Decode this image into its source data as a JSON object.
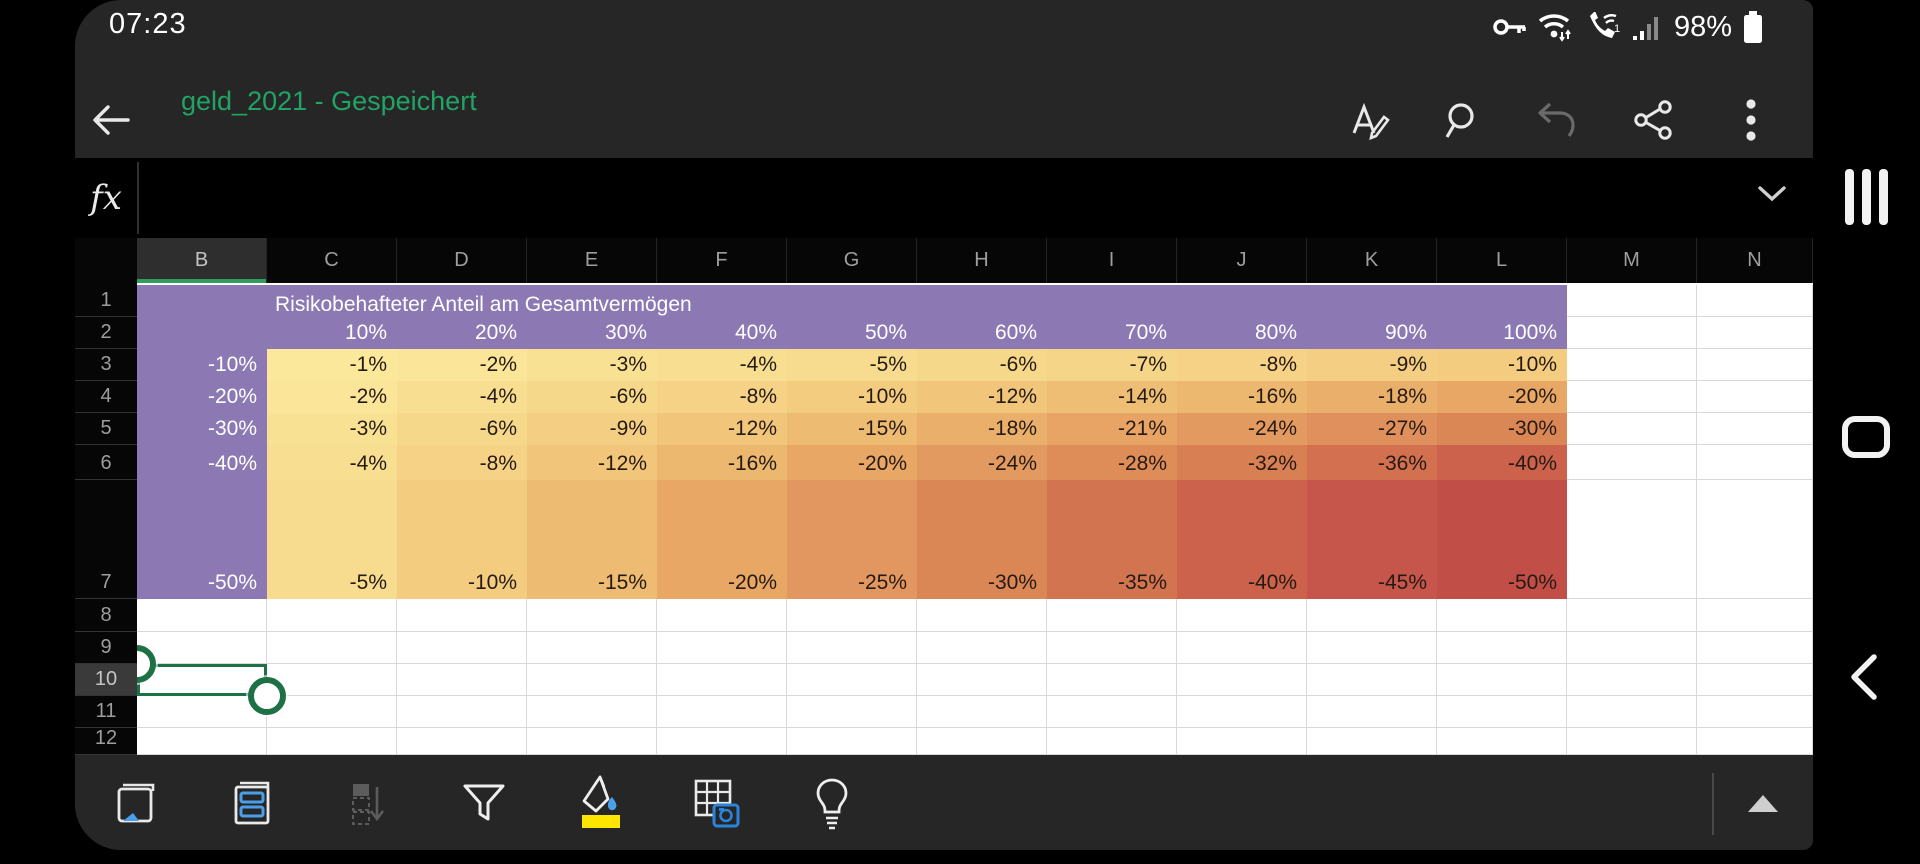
{
  "status_bar": {
    "time": "07:23",
    "battery_percent": "98%",
    "icons": [
      "key-icon",
      "wifi-icon",
      "wifi-calling-icon",
      "signal-strength-icon",
      "battery-icon"
    ]
  },
  "title_bar": {
    "title": "geld_2021 - Gespeichert",
    "title_color": "#21A366",
    "back_icon": "back-arrow-icon",
    "actions": [
      {
        "name": "format-button",
        "icon": "format-pen-icon",
        "enabled": true
      },
      {
        "name": "search-button",
        "icon": "search-icon",
        "enabled": true
      },
      {
        "name": "undo-button",
        "icon": "undo-icon",
        "enabled": false
      },
      {
        "name": "share-button",
        "icon": "share-icon",
        "enabled": true
      },
      {
        "name": "overflow-menu-button",
        "icon": "kebab-menu-icon",
        "enabled": true
      }
    ]
  },
  "formula_bar": {
    "fx_label": "fx",
    "input_value": "",
    "expand_icon": "chevron-down-icon"
  },
  "sheet": {
    "visible_columns": [
      "B",
      "C",
      "D",
      "E",
      "F",
      "G",
      "H",
      "I",
      "J",
      "K",
      "L",
      "M",
      "N"
    ],
    "visible_rows": [
      "1",
      "2",
      "3",
      "4",
      "5",
      "6",
      "7",
      "8",
      "9",
      "10",
      "11",
      "12"
    ],
    "selected_cell": "B10",
    "selected_column": "B",
    "selected_row": "10",
    "title_text": "Risikobehafteter Anteil am Gesamtvermögen",
    "column_percents": [
      "10%",
      "20%",
      "30%",
      "40%",
      "50%",
      "60%",
      "70%",
      "80%",
      "90%",
      "100%"
    ],
    "row_percents": [
      "-10%",
      "-20%",
      "-30%",
      "-40%",
      "-50%"
    ],
    "values": [
      [
        "-1%",
        "-2%",
        "-3%",
        "-4%",
        "-5%",
        "-6%",
        "-7%",
        "-8%",
        "-9%",
        "-10%"
      ],
      [
        "-2%",
        "-4%",
        "-6%",
        "-8%",
        "-10%",
        "-12%",
        "-14%",
        "-16%",
        "-18%",
        "-20%"
      ],
      [
        "-3%",
        "-6%",
        "-9%",
        "-12%",
        "-15%",
        "-18%",
        "-21%",
        "-24%",
        "-27%",
        "-30%"
      ],
      [
        "-4%",
        "-8%",
        "-12%",
        "-16%",
        "-20%",
        "-24%",
        "-28%",
        "-32%",
        "-36%",
        "-40%"
      ],
      [
        "-5%",
        "-10%",
        "-15%",
        "-20%",
        "-25%",
        "-30%",
        "-35%",
        "-40%",
        "-45%",
        "-50%"
      ]
    ],
    "colors": {
      "band_purple": "#8C79B4",
      "band_text": "#FFFFFF",
      "cell_text": "#251a12",
      "gridline": "#D8D8D8",
      "selection_green": "#1E7145",
      "header_underline_green": "#2E9E5C",
      "heat_scale": [
        [
          0,
          "#FDEB9E"
        ],
        [
          5,
          "#F7DB8E"
        ],
        [
          10,
          "#F3CC80"
        ],
        [
          15,
          "#EDBB72"
        ],
        [
          20,
          "#E8A765"
        ],
        [
          25,
          "#E29760"
        ],
        [
          30,
          "#DB8655"
        ],
        [
          35,
          "#D37450"
        ],
        [
          40,
          "#CC614C"
        ],
        [
          45,
          "#C6564B"
        ],
        [
          50,
          "#C24E48"
        ]
      ]
    }
  },
  "toolbar": {
    "icons": [
      {
        "name": "sheet-pen-icon",
        "enabled": true
      },
      {
        "name": "card-view-icon",
        "enabled": true
      },
      {
        "name": "fill-down-icon",
        "enabled": false
      },
      {
        "name": "filter-icon",
        "enabled": true
      },
      {
        "name": "fill-color-icon",
        "enabled": true,
        "accent": "#FFE500"
      },
      {
        "name": "data-from-picture-icon",
        "enabled": true
      },
      {
        "name": "ideas-lightbulb-icon",
        "enabled": true
      }
    ],
    "expand_icon": "expand-up-triangle-icon"
  },
  "nav_bar": {
    "buttons": [
      "recents-button",
      "home-button",
      "back-button"
    ]
  }
}
